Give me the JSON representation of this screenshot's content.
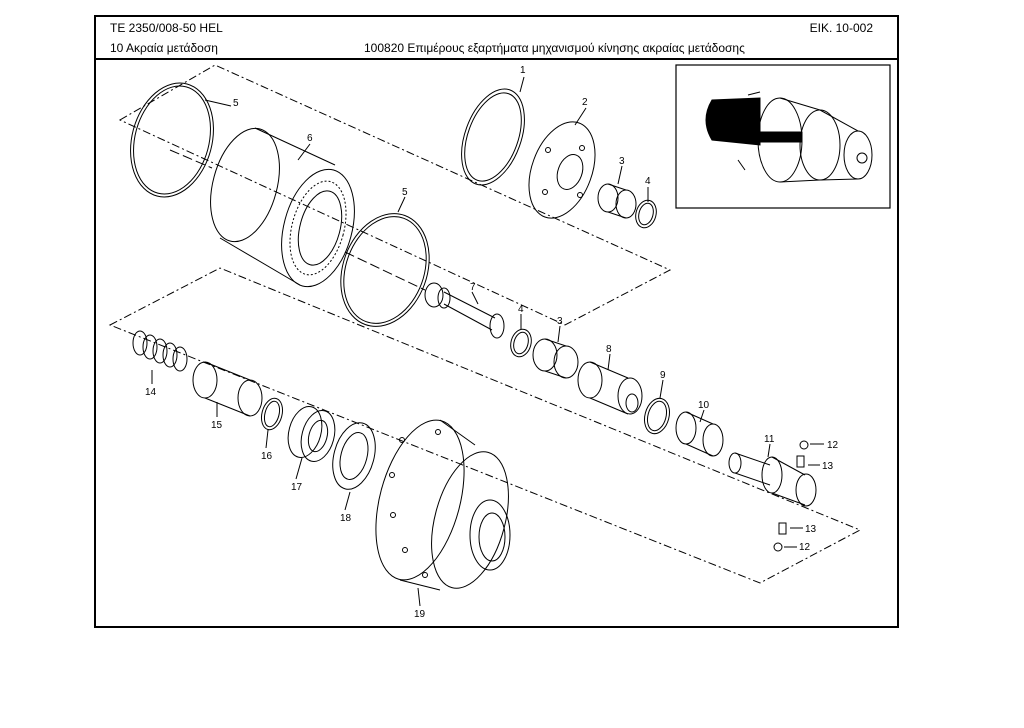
{
  "header": {
    "doc_code": "TE  2350/008-50 HEL",
    "figure_ref": "ΕΙΚ. 10-002",
    "section": "10 Ακραία μετάδοση",
    "title": "100820 Επιμέρους εξαρτήματα μηχανισμού κίνησης ακραίας μετάδοσης"
  },
  "callouts": [
    "1",
    "2",
    "3",
    "3",
    "4",
    "4",
    "5",
    "5",
    "6",
    "7",
    "8",
    "9",
    "10",
    "11",
    "12",
    "12",
    "13",
    "13",
    "14",
    "15",
    "16",
    "17",
    "18",
    "19"
  ]
}
